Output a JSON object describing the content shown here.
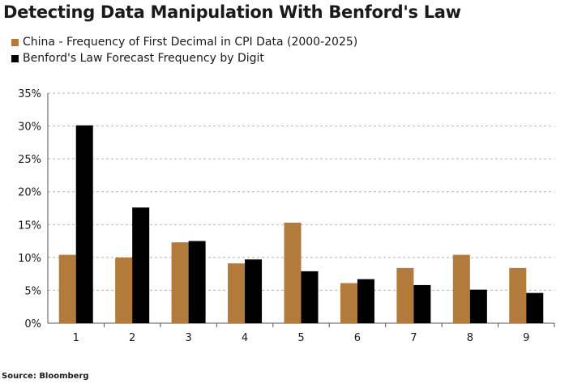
{
  "title": "Detecting Data Manipulation With Benford's Law",
  "source": "Source: Bloomberg",
  "colors": {
    "china": "#B27A3B",
    "benford": "#000000"
  },
  "chart_data": {
    "type": "bar",
    "categories": [
      "1",
      "2",
      "3",
      "4",
      "5",
      "6",
      "7",
      "8",
      "9"
    ],
    "series": [
      {
        "name": "China - Frequency of First Decimal in CPI Data (2000-2025)",
        "values": [
          10.4,
          10.0,
          12.3,
          9.1,
          15.3,
          6.1,
          8.4,
          10.4,
          8.4
        ]
      },
      {
        "name": "Benford's Law Forecast Frequency by Digit",
        "values": [
          30.1,
          17.6,
          12.5,
          9.7,
          7.9,
          6.7,
          5.8,
          5.1,
          4.6
        ]
      }
    ],
    "yticks": [
      "0%",
      "5%",
      "10%",
      "15%",
      "20%",
      "25%",
      "30%",
      "35%"
    ],
    "ylim": [
      0,
      35
    ],
    "grid": true,
    "legend": "top-left",
    "xlabel": "",
    "ylabel": ""
  }
}
